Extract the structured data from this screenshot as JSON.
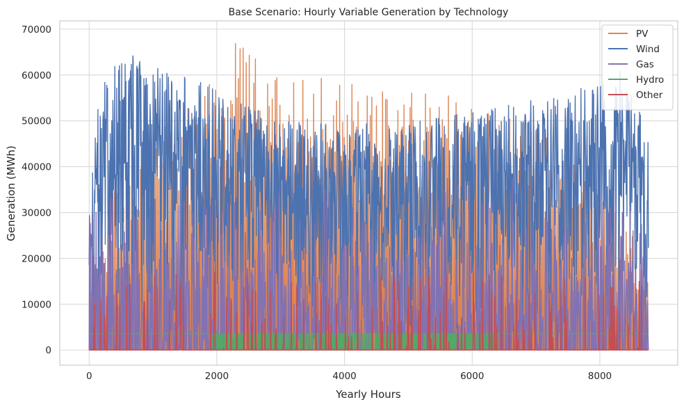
{
  "chart_data": {
    "type": "line",
    "title": "Base Scenario: Hourly Variable Generation by Technology",
    "xlabel": "Yearly Hours",
    "ylabel": "Generation (MWh)",
    "xlim": [
      -460,
      9220
    ],
    "ylim": [
      -3300,
      71800
    ],
    "xticks": [
      0,
      2000,
      4000,
      6000,
      8000
    ],
    "yticks": [
      0,
      10000,
      20000,
      30000,
      40000,
      50000,
      60000,
      70000
    ],
    "grid": true,
    "legend_position": "top-right",
    "hours": 8760,
    "series": [
      {
        "name": "PV",
        "color": "#dd8452",
        "description": "hourly solar output; daily pulses from 0 to a peak that rises from ~10000-45000 in winter to ~55000-68000 in spring/summer, falling again toward year end",
        "approx_peak_envelope": [
          {
            "x": 0,
            "y": 15000
          },
          {
            "x": 500,
            "y": 40000
          },
          {
            "x": 1000,
            "y": 48000
          },
          {
            "x": 1500,
            "y": 55000
          },
          {
            "x": 2000,
            "y": 60000
          },
          {
            "x": 2200,
            "y": 68000
          },
          {
            "x": 3000,
            "y": 60000
          },
          {
            "x": 4000,
            "y": 59000
          },
          {
            "x": 5000,
            "y": 57000
          },
          {
            "x": 6000,
            "y": 56000
          },
          {
            "x": 7000,
            "y": 52000
          },
          {
            "x": 7500,
            "y": 45000
          },
          {
            "x": 8000,
            "y": 35000
          },
          {
            "x": 8760,
            "y": 20000
          }
        ]
      },
      {
        "name": "Wind",
        "color": "#4c72b0",
        "description": "hourly wind output; highly variable between ~3000 and ~65000, highest in winter months",
        "approx_range": [
          3000,
          65500
        ],
        "approx_peak_envelope": [
          {
            "x": 0,
            "y": 36000
          },
          {
            "x": 200,
            "y": 60000
          },
          {
            "x": 600,
            "y": 65000
          },
          {
            "x": 1000,
            "y": 63000
          },
          {
            "x": 1500,
            "y": 60000
          },
          {
            "x": 2000,
            "y": 58000
          },
          {
            "x": 3000,
            "y": 50000
          },
          {
            "x": 4000,
            "y": 49000
          },
          {
            "x": 5000,
            "y": 50000
          },
          {
            "x": 6000,
            "y": 52000
          },
          {
            "x": 7000,
            "y": 55000
          },
          {
            "x": 8000,
            "y": 58000
          },
          {
            "x": 8300,
            "y": 62000
          },
          {
            "x": 8760,
            "y": 48000
          }
        ]
      },
      {
        "name": "Gas",
        "color": "#8172b3",
        "description": "hourly gas dispatch; spiky values between 0 and ~40000",
        "approx_range": [
          0,
          41000
        ]
      },
      {
        "name": "Hydro",
        "color": "#55a868",
        "description": "near-constant baseload around 3500, dipping near 0 through much of the mid-year",
        "approx_value": 3500
      },
      {
        "name": "Other",
        "color": "#c44e52",
        "description": "mostly 0 with occasional spikes up to ~18000",
        "approx_range": [
          0,
          18500
        ]
      }
    ]
  }
}
